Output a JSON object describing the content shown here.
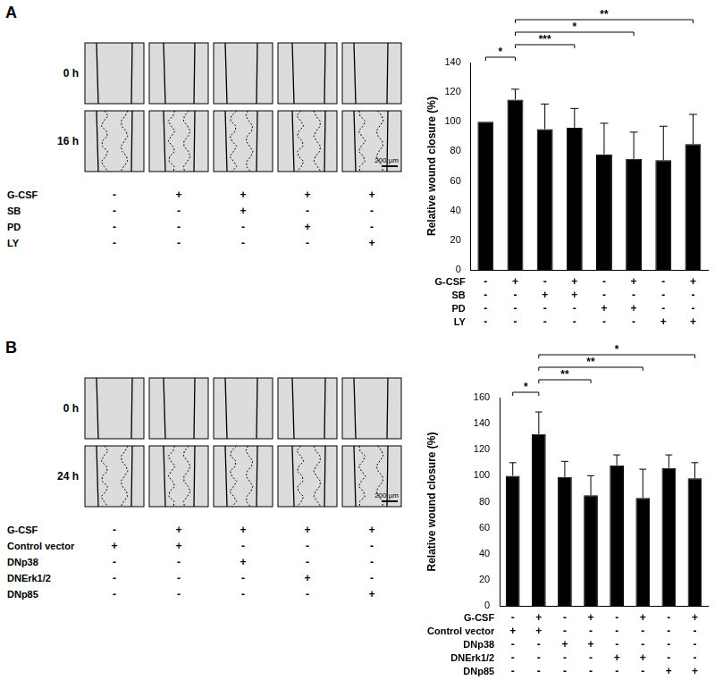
{
  "chart_data": [
    {
      "type": "bar",
      "y_label": "Relative wound closure (%)",
      "categories": [
        null,
        null,
        null,
        null,
        null,
        null,
        null,
        null
      ],
      "values": [
        100,
        115,
        95,
        96,
        78,
        75,
        74,
        85
      ],
      "errors": [
        0,
        7,
        17,
        13,
        21,
        18,
        23,
        20
      ],
      "color": "#000000",
      "ylim": [
        0,
        140
      ],
      "yticks": [
        0,
        20,
        40,
        60,
        80,
        100,
        120,
        140
      ],
      "grid": false,
      "tick_labels": "y",
      "treatments": [
        {
          "name": "G-CSF",
          "marks": [
            "-",
            "+",
            "-",
            "+",
            "-",
            "+",
            "-",
            "+"
          ]
        },
        {
          "name": "SB",
          "marks": [
            "-",
            "-",
            "+",
            "+",
            "-",
            "-",
            "-",
            "-"
          ]
        },
        {
          "name": "PD",
          "marks": [
            "-",
            "-",
            "-",
            "-",
            "+",
            "+",
            "-",
            "-"
          ]
        },
        {
          "name": "LY",
          "marks": [
            "-",
            "-",
            "-",
            "-",
            "-",
            "-",
            "+",
            "+"
          ]
        }
      ],
      "significance": [
        {
          "from": 0,
          "to": 1,
          "label": "*"
        },
        {
          "from": 1,
          "to": 3,
          "label": "***"
        },
        {
          "from": 1,
          "to": 5,
          "label": "*"
        },
        {
          "from": 1,
          "to": 7,
          "label": "**"
        }
      ]
    },
    {
      "type": "bar",
      "y_label": "Relative wound closure (%)",
      "categories": [
        null,
        null,
        null,
        null,
        null,
        null,
        null,
        null
      ],
      "values": [
        100,
        132,
        99,
        85,
        108,
        83,
        106,
        98
      ],
      "errors": [
        10,
        17,
        12,
        15,
        8,
        22,
        10,
        12
      ],
      "color": "#000000",
      "ylim": [
        0,
        160
      ],
      "yticks": [
        0,
        20,
        40,
        60,
        80,
        100,
        120,
        140,
        160
      ],
      "grid": false,
      "tick_labels": "y",
      "treatments": [
        {
          "name": "G-CSF",
          "marks": [
            "-",
            "+",
            "-",
            "+",
            "-",
            "+",
            "-",
            "+"
          ]
        },
        {
          "name": "Control vector",
          "marks": [
            "+",
            "+",
            "-",
            "-",
            "-",
            "-",
            "-",
            "-"
          ]
        },
        {
          "name": "DNp38",
          "marks": [
            "-",
            "-",
            "+",
            "+",
            "-",
            "-",
            "-",
            "-"
          ]
        },
        {
          "name": "DNErk1/2",
          "marks": [
            "-",
            "-",
            "-",
            "-",
            "+",
            "+",
            "-",
            "-"
          ]
        },
        {
          "name": "DNp85",
          "marks": [
            "-",
            "-",
            "-",
            "-",
            "-",
            "-",
            "+",
            "+"
          ]
        }
      ],
      "significance": [
        {
          "from": 0,
          "to": 1,
          "label": "*"
        },
        {
          "from": 1,
          "to": 3,
          "label": "**"
        },
        {
          "from": 1,
          "to": 5,
          "label": "**"
        },
        {
          "from": 1,
          "to": 7,
          "label": "*"
        }
      ]
    }
  ],
  "panels": [
    {
      "label": "A",
      "image_rows": [
        "0 h",
        "16 h"
      ],
      "scale_bar": "200 µm",
      "treatments": [
        {
          "name": "G-CSF",
          "marks": [
            "-",
            "+",
            "+",
            "+",
            "+"
          ]
        },
        {
          "name": "SB",
          "marks": [
            "-",
            "-",
            "+",
            "-",
            "-"
          ]
        },
        {
          "name": "PD",
          "marks": [
            "-",
            "-",
            "-",
            "+",
            "-"
          ]
        },
        {
          "name": "LY",
          "marks": [
            "-",
            "-",
            "-",
            "-",
            "+"
          ]
        }
      ]
    },
    {
      "label": "B",
      "image_rows": [
        "0 h",
        "24 h"
      ],
      "scale_bar": "200 µm",
      "treatments": [
        {
          "name": "G-CSF",
          "marks": [
            "-",
            "+",
            "+",
            "+",
            "+"
          ]
        },
        {
          "name": "Control vector",
          "marks": [
            "+",
            "+",
            "-",
            "-",
            "-"
          ]
        },
        {
          "name": "DNp38",
          "marks": [
            "-",
            "-",
            "+",
            "-",
            "-"
          ]
        },
        {
          "name": "DNErk1/2",
          "marks": [
            "-",
            "-",
            "-",
            "+",
            "-"
          ]
        },
        {
          "name": "DNp85",
          "marks": [
            "-",
            "-",
            "-",
            "-",
            "+"
          ]
        }
      ]
    }
  ]
}
